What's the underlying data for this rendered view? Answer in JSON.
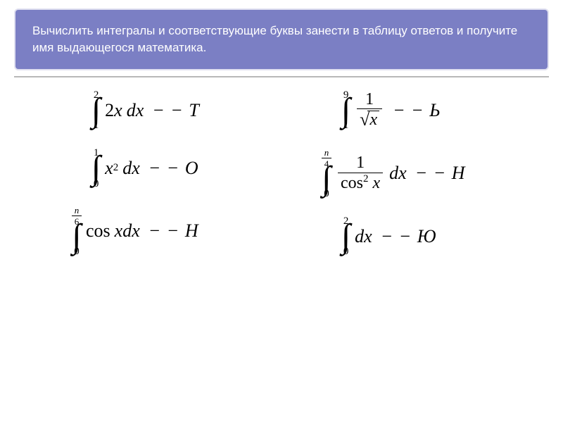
{
  "header": {
    "text": "Вычислить интегралы и соответствующие буквы занести в таблицу ответов и получите имя выдающегося математика.",
    "bg_color": "#7b7fc4",
    "text_color": "#ffffff",
    "border_color": "#e0e0f0",
    "font_size": 17
  },
  "layout": {
    "columns": 2,
    "gap": 60,
    "accent_color": "#7b7fc4",
    "divider_color": "#b8b8b8"
  },
  "typography": {
    "math_font": "Times New Roman",
    "math_size": 26,
    "limit_size": 15,
    "integral_size": 48
  },
  "equations": {
    "left": [
      {
        "lower": "1",
        "upper": "2",
        "integrand_tex": "2x",
        "dx": "dx",
        "letter": "Т",
        "letter_prefix": "− −"
      },
      {
        "lower": "0",
        "upper": "1",
        "integrand_tex": "x^2",
        "dx": "dx",
        "letter": "О",
        "letter_prefix": "− −"
      },
      {
        "lower": "0",
        "upper_frac": {
          "num": "n",
          "den": "6"
        },
        "integrand_tex": "cos x",
        "dx": "dx",
        "letter": "Н",
        "letter_prefix": "− −"
      }
    ],
    "right": [
      {
        "lower": "1",
        "upper": "9",
        "integrand_frac": {
          "num": "1",
          "den_sqrt": "x"
        },
        "dx": "",
        "letter": "Ь",
        "letter_prefix": "− −"
      },
      {
        "lower": "0",
        "upper_frac": {
          "num": "n",
          "den": "4"
        },
        "integrand_frac": {
          "num": "1",
          "den": "cos^2 x"
        },
        "dx": "dx",
        "letter": "Н",
        "letter_prefix": "− −"
      },
      {
        "lower": "0",
        "upper": "2",
        "integrand_tex": "",
        "dx": "dx",
        "letter": "Ю",
        "letter_prefix": "− −"
      }
    ]
  }
}
